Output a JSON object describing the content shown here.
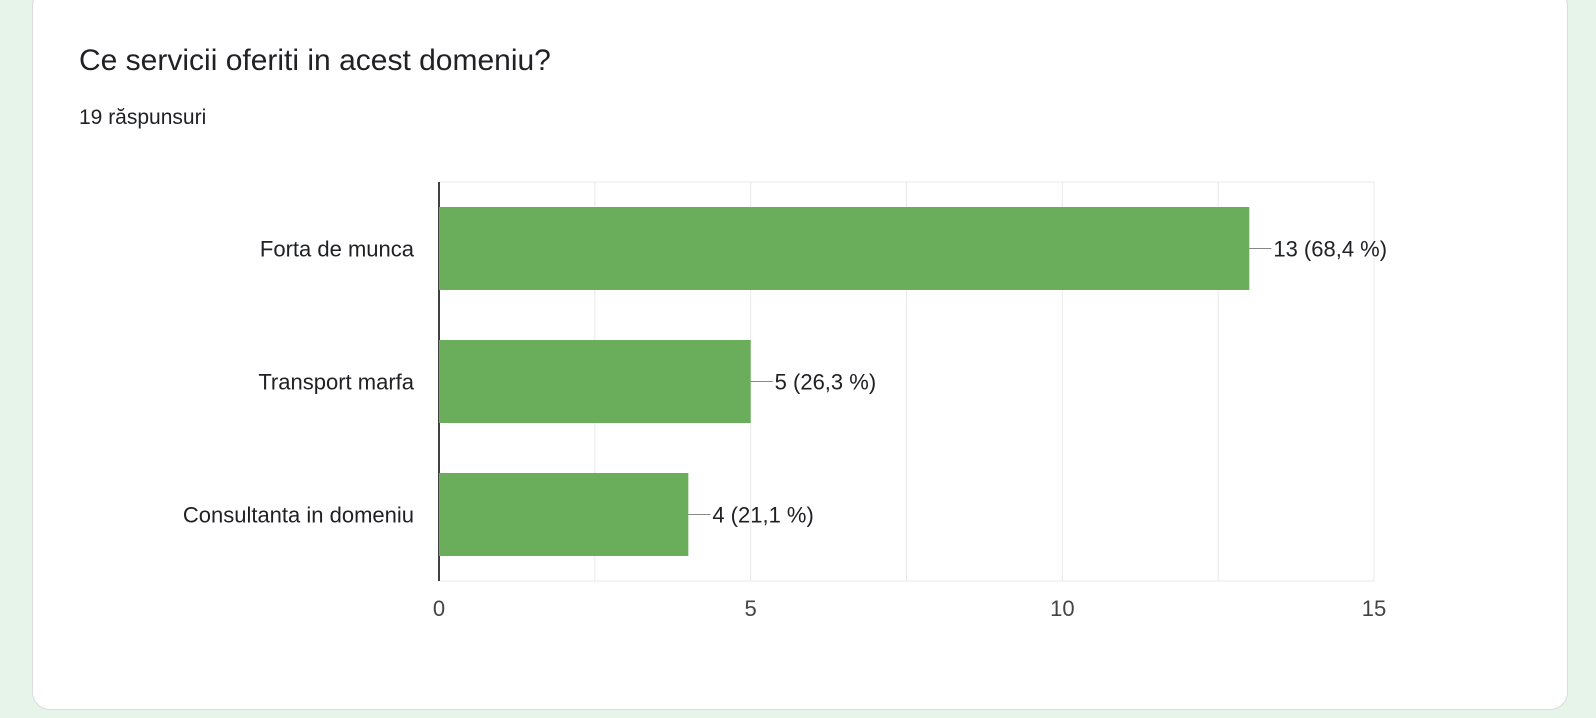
{
  "question": {
    "title": "Ce servicii oferiti in acest domeniu?",
    "responses": "19 răspunsuri"
  },
  "colors": {
    "bar": "#6aae5c",
    "axis": "#000000",
    "grid": "#e8e8e8",
    "tick_text": "#444444",
    "label_text": "#202124",
    "leader": "#888888"
  },
  "chart_data": {
    "type": "bar",
    "orientation": "horizontal",
    "categories": [
      "Forta de munca",
      "Transport marfa",
      "Consultanta in domeniu"
    ],
    "values": [
      13,
      5,
      4
    ],
    "data_labels": [
      "13 (68,4 %)",
      "5 (26,3 %)",
      "4 (21,1 %)"
    ],
    "xlim": [
      0,
      15
    ],
    "xticks": [
      0,
      5,
      10,
      15
    ],
    "minor_step": 2.5,
    "grid": true,
    "legend": "none"
  }
}
